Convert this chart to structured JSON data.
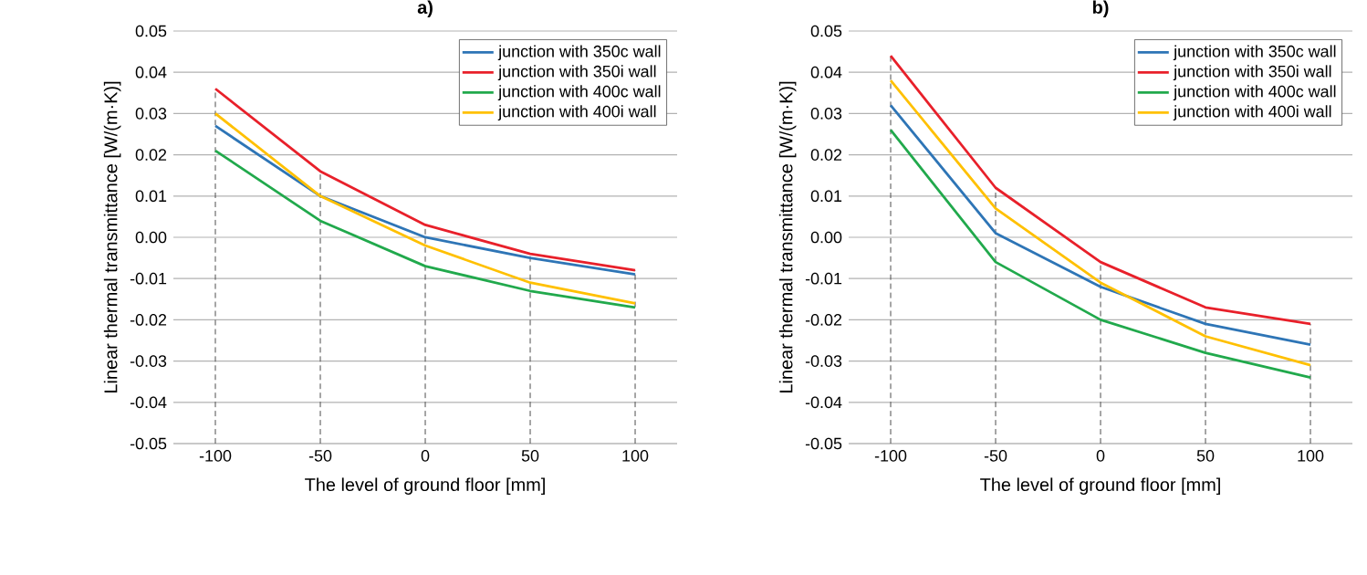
{
  "chart_data": [
    {
      "type": "line",
      "title": "a)",
      "xlabel": "The level of ground floor [mm]",
      "ylabel": "Linear thermal transmittance [W/(m·K)]",
      "x": [
        -100,
        -50,
        0,
        50,
        100
      ],
      "xlim": [
        -120,
        120
      ],
      "xticks": [
        -100,
        -50,
        0,
        50,
        100
      ],
      "ylim": [
        -0.05,
        0.05
      ],
      "yticks": [
        {
          "value": -0.05,
          "label": "-0.05"
        },
        {
          "value": -0.04,
          "label": "-0.04"
        },
        {
          "value": -0.03,
          "label": "-0.03"
        },
        {
          "value": -0.02,
          "label": "-0.02"
        },
        {
          "value": -0.01,
          "label": "-0.01"
        },
        {
          "value": 0,
          "label": "0.00"
        },
        {
          "value": 0.01,
          "label": "0.01"
        },
        {
          "value": 0.02,
          "label": "0.02"
        },
        {
          "value": 0.03,
          "label": "0.03"
        },
        {
          "value": 0.04,
          "label": "0.04"
        },
        {
          "value": 0.05,
          "label": "0.05"
        }
      ],
      "grid": "y",
      "legend": "top right",
      "marker": "none",
      "line_style": "solid",
      "ref_lines": [
        {
          "axis": "x",
          "value": -100,
          "line_style": "dashed"
        },
        {
          "axis": "x",
          "value": -50,
          "line_style": "dashed"
        },
        {
          "axis": "x",
          "value": 0,
          "line_style": "dashed"
        },
        {
          "axis": "x",
          "value": 50,
          "line_style": "dashed"
        },
        {
          "axis": "x",
          "value": 100,
          "line_style": "dashed"
        }
      ],
      "series": [
        {
          "name": "junction with 350c wall",
          "color": "#2e75b6",
          "values": [
            0.027,
            0.01,
            0.0,
            -0.005,
            -0.009
          ]
        },
        {
          "name": "junction with 350i wall",
          "color": "#e8202a",
          "values": [
            0.036,
            0.016,
            0.003,
            -0.004,
            -0.008
          ]
        },
        {
          "name": "junction with 400c wall",
          "color": "#21a94c",
          "values": [
            0.021,
            0.004,
            -0.007,
            -0.013,
            -0.017
          ]
        },
        {
          "name": "junction with 400i wall",
          "color": "#ffc000",
          "values": [
            0.03,
            0.01,
            -0.002,
            -0.011,
            -0.016
          ]
        }
      ]
    },
    {
      "type": "line",
      "title": "b)",
      "xlabel": "The level of ground floor [mm]",
      "ylabel": "Linear thermal transmittance [W/(m·K)]",
      "x": [
        -100,
        -50,
        0,
        50,
        100
      ],
      "xlim": [
        -120,
        120
      ],
      "xticks": [
        -100,
        -50,
        0,
        50,
        100
      ],
      "ylim": [
        -0.05,
        0.05
      ],
      "yticks": [
        {
          "value": -0.05,
          "label": "-0.05"
        },
        {
          "value": -0.04,
          "label": "-0.04"
        },
        {
          "value": -0.03,
          "label": "-0.03"
        },
        {
          "value": -0.02,
          "label": "-0.02"
        },
        {
          "value": -0.01,
          "label": "-0.01"
        },
        {
          "value": 0,
          "label": "0.00"
        },
        {
          "value": 0.01,
          "label": "0.01"
        },
        {
          "value": 0.02,
          "label": "0.02"
        },
        {
          "value": 0.03,
          "label": "0.03"
        },
        {
          "value": 0.04,
          "label": "0.04"
        },
        {
          "value": 0.05,
          "label": "0.05"
        }
      ],
      "grid": "y",
      "legend": "top right",
      "marker": "none",
      "line_style": "solid",
      "ref_lines": [
        {
          "axis": "x",
          "value": -100,
          "line_style": "dashed"
        },
        {
          "axis": "x",
          "value": -50,
          "line_style": "dashed"
        },
        {
          "axis": "x",
          "value": 0,
          "line_style": "dashed"
        },
        {
          "axis": "x",
          "value": 50,
          "line_style": "dashed"
        },
        {
          "axis": "x",
          "value": 100,
          "line_style": "dashed"
        }
      ],
      "series": [
        {
          "name": "junction with 350c wall",
          "color": "#2e75b6",
          "values": [
            0.032,
            0.001,
            -0.012,
            -0.021,
            -0.026
          ]
        },
        {
          "name": "junction with 350i wall",
          "color": "#e8202a",
          "values": [
            0.044,
            0.012,
            -0.006,
            -0.017,
            -0.021
          ]
        },
        {
          "name": "junction with 400c wall",
          "color": "#21a94c",
          "values": [
            0.026,
            -0.006,
            -0.02,
            -0.028,
            -0.034
          ]
        },
        {
          "name": "junction with 400i wall",
          "color": "#ffc000",
          "values": [
            0.038,
            0.007,
            -0.011,
            -0.024,
            -0.031
          ]
        }
      ]
    }
  ]
}
